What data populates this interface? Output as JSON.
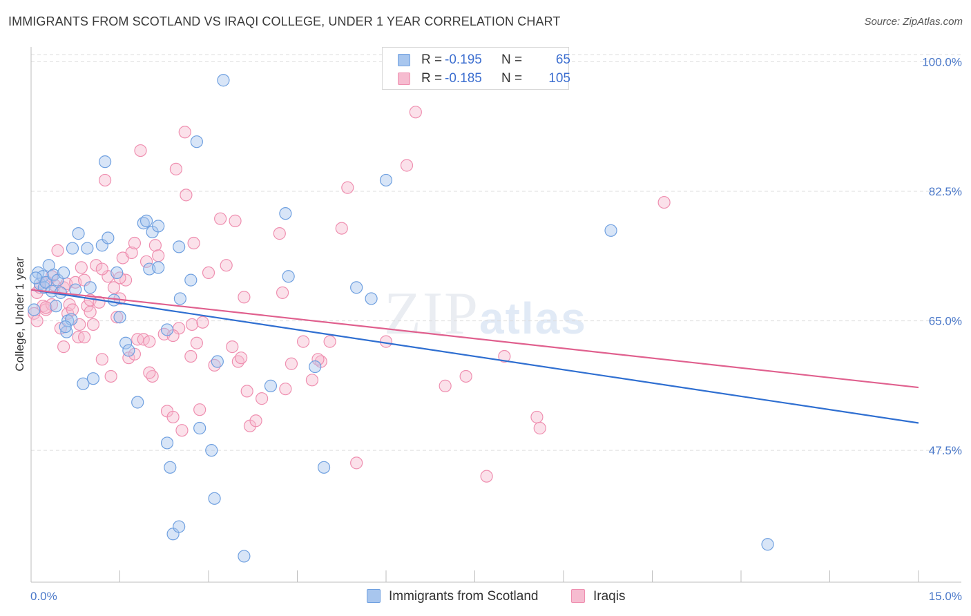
{
  "header": {
    "title": "IMMIGRANTS FROM SCOTLAND VS IRAQI COLLEGE, UNDER 1 YEAR CORRELATION CHART",
    "source": "Source: ZipAtlas.com"
  },
  "watermark": {
    "zip": "ZIP",
    "atlas": "atlas"
  },
  "legend": {
    "rows": [
      {
        "r_label": "R =",
        "r_value": "-0.195",
        "n_label": "N =",
        "n_value": "65",
        "color": "#6fa0e0"
      },
      {
        "r_label": "R =",
        "r_value": "-0.185",
        "n_label": "N =",
        "n_value": "105",
        "color": "#ef8fb0"
      }
    ]
  },
  "bottom_legend": [
    {
      "label": "Immigrants from Scotland",
      "color": "#6fa0e0"
    },
    {
      "label": "Iraqis",
      "color": "#ef8fb0"
    }
  ],
  "colors": {
    "blue_fill": "#a8c6ee",
    "blue_stroke": "#6fa0e0",
    "blue_line": "#2f6fd1",
    "pink_fill": "#f6bcd0",
    "pink_stroke": "#ef8fb0",
    "pink_line": "#e0608e",
    "grid": "#dddddd",
    "tick_text": "#4a78c9"
  },
  "chart_data": {
    "type": "scatter",
    "title": "IMMIGRANTS FROM SCOTLAND VS IRAQI COLLEGE, UNDER 1 YEAR CORRELATION CHART",
    "xlabel": "",
    "ylabel": "College, Under 1 year",
    "xlim": [
      0,
      15
    ],
    "ylim": [
      31,
      102
    ],
    "x_tick_labels": [
      "0.0%",
      "15.0%"
    ],
    "y_ticks": [
      47.5,
      65.0,
      82.5,
      100.0
    ],
    "y_tick_labels": [
      "47.5%",
      "65.0%",
      "82.5%",
      "100.0%"
    ],
    "series": [
      {
        "name": "Immigrants from Scotland",
        "trend": {
          "x": [
            0,
            15
          ],
          "y": [
            69.2,
            51.2
          ]
        },
        "points": [
          [
            0.05,
            66.5
          ],
          [
            0.12,
            71.5
          ],
          [
            0.15,
            70.0
          ],
          [
            0.2,
            71.0
          ],
          [
            0.22,
            69.5
          ],
          [
            0.25,
            70.2
          ],
          [
            0.3,
            72.5
          ],
          [
            0.35,
            69.0
          ],
          [
            0.38,
            71.2
          ],
          [
            0.42,
            67.0
          ],
          [
            0.45,
            70.5
          ],
          [
            0.5,
            68.8
          ],
          [
            0.55,
            71.5
          ],
          [
            0.6,
            63.5
          ],
          [
            0.62,
            65.0
          ],
          [
            0.68,
            65.2
          ],
          [
            0.7,
            74.8
          ],
          [
            0.75,
            69.2
          ],
          [
            0.8,
            76.8
          ],
          [
            0.88,
            56.5
          ],
          [
            0.95,
            74.8
          ],
          [
            1.0,
            69.5
          ],
          [
            1.05,
            57.2
          ],
          [
            1.2,
            75.2
          ],
          [
            1.25,
            86.5
          ],
          [
            1.3,
            76.2
          ],
          [
            1.45,
            71.5
          ],
          [
            1.5,
            65.5
          ],
          [
            1.6,
            62.0
          ],
          [
            1.65,
            61.0
          ],
          [
            1.8,
            54.0
          ],
          [
            1.9,
            78.2
          ],
          [
            1.95,
            78.5
          ],
          [
            2.0,
            72.0
          ],
          [
            2.05,
            77.0
          ],
          [
            2.15,
            77.8
          ],
          [
            2.3,
            63.8
          ],
          [
            2.3,
            48.5
          ],
          [
            2.35,
            45.2
          ],
          [
            2.4,
            36.2
          ],
          [
            2.5,
            37.2
          ],
          [
            2.5,
            75.0
          ],
          [
            2.52,
            68.0
          ],
          [
            2.7,
            70.5
          ],
          [
            2.8,
            89.2
          ],
          [
            2.85,
            50.5
          ],
          [
            3.05,
            47.5
          ],
          [
            3.1,
            41.0
          ],
          [
            3.15,
            59.5
          ],
          [
            3.25,
            97.5
          ],
          [
            3.6,
            33.2
          ],
          [
            4.05,
            56.2
          ],
          [
            4.3,
            79.5
          ],
          [
            4.35,
            71.0
          ],
          [
            4.8,
            58.8
          ],
          [
            4.95,
            45.2
          ],
          [
            5.5,
            69.5
          ],
          [
            5.75,
            68.0
          ],
          [
            6.0,
            84.0
          ],
          [
            9.8,
            77.2
          ],
          [
            12.45,
            34.8
          ],
          [
            0.08,
            70.8
          ],
          [
            0.58,
            64.2
          ],
          [
            1.4,
            67.8
          ],
          [
            2.15,
            72.2
          ]
        ]
      },
      {
        "name": "Iraqis",
        "trend": {
          "x": [
            0,
            15
          ],
          "y": [
            69.2,
            56.0
          ]
        },
        "points": [
          [
            0.05,
            66.0
          ],
          [
            0.1,
            65.0
          ],
          [
            0.1,
            68.8
          ],
          [
            0.15,
            69.5
          ],
          [
            0.2,
            67.0
          ],
          [
            0.25,
            66.5
          ],
          [
            0.28,
            70.2
          ],
          [
            0.35,
            71.0
          ],
          [
            0.4,
            69.8
          ],
          [
            0.45,
            74.5
          ],
          [
            0.5,
            64.0
          ],
          [
            0.55,
            69.5
          ],
          [
            0.6,
            70.0
          ],
          [
            0.62,
            66.0
          ],
          [
            0.65,
            67.2
          ],
          [
            0.7,
            66.5
          ],
          [
            0.75,
            70.2
          ],
          [
            0.8,
            62.8
          ],
          [
            0.82,
            64.5
          ],
          [
            0.85,
            72.2
          ],
          [
            0.9,
            70.5
          ],
          [
            0.95,
            67.0
          ],
          [
            1.0,
            67.8
          ],
          [
            1.05,
            64.5
          ],
          [
            1.1,
            72.5
          ],
          [
            1.15,
            67.5
          ],
          [
            1.2,
            59.8
          ],
          [
            1.25,
            84.0
          ],
          [
            1.3,
            71.0
          ],
          [
            1.35,
            57.5
          ],
          [
            1.4,
            69.5
          ],
          [
            1.45,
            65.5
          ],
          [
            1.5,
            68.0
          ],
          [
            1.55,
            73.5
          ],
          [
            1.6,
            70.5
          ],
          [
            1.65,
            60.0
          ],
          [
            1.7,
            74.2
          ],
          [
            1.75,
            75.5
          ],
          [
            1.8,
            62.5
          ],
          [
            1.85,
            88.0
          ],
          [
            1.9,
            62.5
          ],
          [
            1.95,
            73.0
          ],
          [
            2.0,
            62.2
          ],
          [
            2.05,
            57.5
          ],
          [
            2.1,
            75.2
          ],
          [
            2.15,
            73.8
          ],
          [
            2.25,
            63.2
          ],
          [
            2.3,
            52.8
          ],
          [
            2.4,
            52.0
          ],
          [
            2.45,
            85.5
          ],
          [
            2.5,
            64.0
          ],
          [
            2.55,
            50.2
          ],
          [
            2.6,
            90.5
          ],
          [
            2.62,
            82.0
          ],
          [
            2.7,
            60.2
          ],
          [
            2.72,
            64.5
          ],
          [
            2.75,
            75.5
          ],
          [
            2.8,
            62.0
          ],
          [
            2.85,
            53.0
          ],
          [
            2.9,
            64.8
          ],
          [
            3.0,
            71.5
          ],
          [
            3.1,
            59.0
          ],
          [
            3.2,
            78.8
          ],
          [
            3.3,
            72.5
          ],
          [
            3.45,
            78.5
          ],
          [
            3.5,
            59.5
          ],
          [
            3.55,
            60.0
          ],
          [
            3.6,
            68.2
          ],
          [
            3.65,
            55.5
          ],
          [
            3.7,
            50.8
          ],
          [
            3.8,
            51.5
          ],
          [
            3.9,
            54.5
          ],
          [
            4.2,
            76.8
          ],
          [
            4.25,
            68.8
          ],
          [
            4.3,
            55.8
          ],
          [
            4.4,
            59.2
          ],
          [
            4.6,
            62.2
          ],
          [
            4.75,
            57.0
          ],
          [
            4.9,
            59.5
          ],
          [
            5.05,
            62.2
          ],
          [
            5.25,
            77.5
          ],
          [
            5.35,
            83.0
          ],
          [
            5.5,
            45.8
          ],
          [
            6.0,
            62.2
          ],
          [
            6.35,
            86.0
          ],
          [
            6.5,
            93.2
          ],
          [
            7.0,
            56.2
          ],
          [
            7.35,
            57.5
          ],
          [
            7.7,
            44.0
          ],
          [
            8.0,
            60.2
          ],
          [
            8.55,
            52.0
          ],
          [
            8.6,
            50.5
          ],
          [
            10.7,
            81.0
          ],
          [
            1.0,
            66.2
          ],
          [
            0.55,
            61.5
          ],
          [
            2.0,
            58.0
          ],
          [
            1.75,
            60.5
          ],
          [
            0.35,
            67.2
          ],
          [
            3.4,
            61.5
          ],
          [
            4.85,
            59.8
          ],
          [
            0.9,
            62.8
          ],
          [
            1.2,
            72.0
          ],
          [
            2.4,
            63.0
          ],
          [
            0.25,
            66.8
          ],
          [
            1.5,
            70.8
          ]
        ]
      }
    ]
  }
}
